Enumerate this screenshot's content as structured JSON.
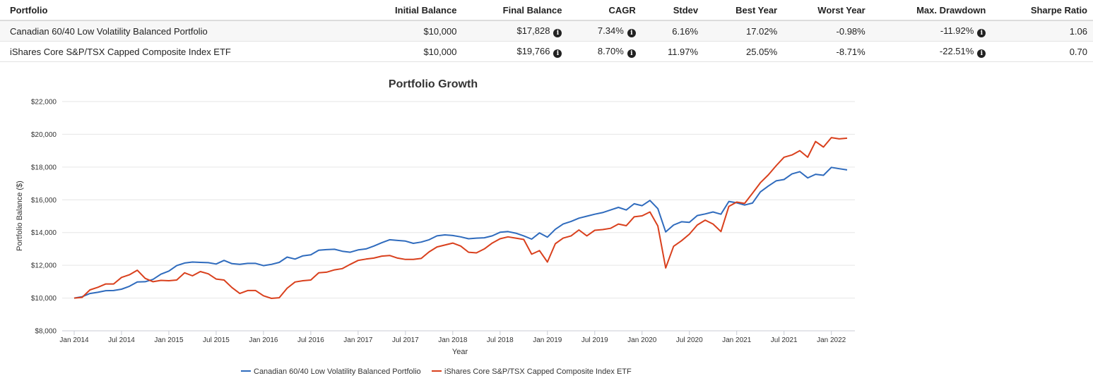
{
  "table": {
    "headers": [
      "Portfolio",
      "Initial Balance",
      "Final Balance",
      "CAGR",
      "Stdev",
      "Best Year",
      "Worst Year",
      "Max. Drawdown",
      "Sharpe Ratio"
    ],
    "rows": [
      {
        "portfolio": "Canadian 60/40 Low Volatility Balanced Portfolio",
        "initial": "$10,000",
        "final": "$17,828",
        "cagr": "7.34%",
        "stdev": "6.16%",
        "best": "17.02%",
        "worst": "-0.98%",
        "drawdown": "-11.92%",
        "sharpe": "1.06"
      },
      {
        "portfolio": "iShares Core S&P/TSX Capped Composite Index ETF",
        "initial": "$10,000",
        "final": "$19,766",
        "cagr": "8.70%",
        "stdev": "11.97%",
        "best": "25.05%",
        "worst": "-8.71%",
        "drawdown": "-22.51%",
        "sharpe": "0.70"
      }
    ]
  },
  "info_glyph": "i",
  "chart_data": {
    "type": "line",
    "title": "Portfolio Growth",
    "xlabel": "Year",
    "ylabel": "Portfolio Balance ($)",
    "ylim": [
      8000,
      22000
    ],
    "yticks": [
      8000,
      10000,
      12000,
      14000,
      16000,
      18000,
      20000,
      22000
    ],
    "ytick_labels": [
      "$8,000",
      "$10,000",
      "$12,000",
      "$14,000",
      "$16,000",
      "$18,000",
      "$20,000",
      "$22,000"
    ],
    "x_start": "2014-01",
    "x_end": "2022-03",
    "xtick_labels": [
      "Jan 2014",
      "Jul 2014",
      "Jan 2015",
      "Jul 2015",
      "Jan 2016",
      "Jul 2016",
      "Jan 2017",
      "Jul 2017",
      "Jan 2018",
      "Jul 2018",
      "Jan 2019",
      "Jul 2019",
      "Jan 2020",
      "Jul 2020",
      "Jan 2021",
      "Jul 2021",
      "Jan 2022"
    ],
    "grid": true,
    "legend_position": "bottom",
    "series": [
      {
        "name": "Canadian 60/40 Low Volatility Balanced Portfolio",
        "color": "#2f6bbd",
        "values": [
          10000,
          10080,
          10280,
          10350,
          10450,
          10460,
          10540,
          10720,
          10980,
          11000,
          11140,
          11460,
          11650,
          11980,
          12140,
          12200,
          12180,
          12160,
          12080,
          12300,
          12100,
          12060,
          12120,
          12120,
          11980,
          12060,
          12180,
          12500,
          12380,
          12580,
          12640,
          12920,
          12960,
          12980,
          12860,
          12800,
          12940,
          13000,
          13180,
          13380,
          13560,
          13520,
          13480,
          13340,
          13420,
          13560,
          13800,
          13860,
          13820,
          13740,
          13620,
          13660,
          13680,
          13800,
          14020,
          14060,
          13960,
          13800,
          13600,
          13980,
          13720,
          14200,
          14520,
          14680,
          14880,
          15000,
          15120,
          15220,
          15380,
          15540,
          15380,
          15760,
          15640,
          15960,
          15460,
          14040,
          14460,
          14660,
          14620,
          15040,
          15140,
          15260,
          15120,
          15900,
          15820,
          15680,
          15800,
          16480,
          16840,
          17160,
          17240,
          17580,
          17720,
          17340,
          17560,
          17500,
          17980,
          17900,
          17828
        ]
      },
      {
        "name": "iShares Core S&P/TSX Capped Composite Index ETF",
        "color": "#d9401d",
        "values": [
          10000,
          10040,
          10500,
          10660,
          10860,
          10860,
          11260,
          11420,
          11700,
          11200,
          11000,
          11080,
          11060,
          11100,
          11540,
          11360,
          11620,
          11480,
          11160,
          11100,
          10640,
          10280,
          10460,
          10460,
          10140,
          9980,
          10020,
          10600,
          10980,
          11060,
          11100,
          11540,
          11580,
          11720,
          11800,
          12060,
          12300,
          12380,
          12440,
          12560,
          12600,
          12440,
          12360,
          12360,
          12420,
          12820,
          13120,
          13240,
          13360,
          13180,
          12800,
          12760,
          13000,
          13360,
          13620,
          13740,
          13660,
          13580,
          12680,
          12900,
          12200,
          13320,
          13660,
          13800,
          14160,
          13800,
          14140,
          14180,
          14260,
          14520,
          14420,
          14960,
          15020,
          15260,
          14400,
          11840,
          13160,
          13500,
          13900,
          14460,
          14760,
          14520,
          14060,
          15600,
          15860,
          15780,
          16400,
          17040,
          17520,
          18080,
          18600,
          18740,
          19000,
          18600,
          19560,
          19220,
          19800,
          19720,
          19766
        ]
      }
    ]
  }
}
